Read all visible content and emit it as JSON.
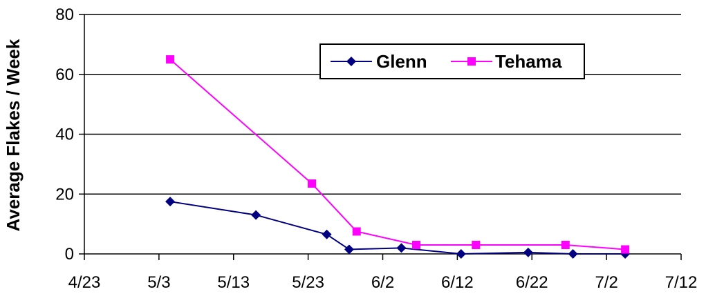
{
  "chart_data": {
    "type": "line",
    "title": "",
    "xlabel": "",
    "ylabel": "Average Flakes / Week",
    "x_ticks": [
      "4/23",
      "5/3",
      "5/13",
      "5/23",
      "6/2",
      "6/12",
      "6/22",
      "7/2",
      "7/12"
    ],
    "x_tick_values": [
      0,
      10,
      20,
      30,
      40,
      50,
      60,
      70,
      80
    ],
    "x_origin_date": "4/23",
    "xlim": [
      0,
      80
    ],
    "y_ticks": [
      "0",
      "20",
      "40",
      "60",
      "80"
    ],
    "y_tick_values": [
      0,
      20,
      40,
      60,
      80
    ],
    "ylim": [
      0,
      80
    ],
    "grid": "horizontal",
    "legend_position": "top-right",
    "series": [
      {
        "name": "Glenn",
        "color": "#000080",
        "marker": "diamond",
        "points": [
          {
            "date": "5/4",
            "x": 11.5,
            "y": 17.5
          },
          {
            "date": "5/16",
            "x": 23,
            "y": 13
          },
          {
            "date": "5/26",
            "x": 32.5,
            "y": 6.5
          },
          {
            "date": "5/28",
            "x": 35.5,
            "y": 1.5
          },
          {
            "date": "6/4",
            "x": 42.5,
            "y": 2
          },
          {
            "date": "6/13",
            "x": 50.5,
            "y": 0
          },
          {
            "date": "6/22",
            "x": 59.5,
            "y": 0.5
          },
          {
            "date": "6/28",
            "x": 65.5,
            "y": 0
          },
          {
            "date": "7/5",
            "x": 72.5,
            "y": 0
          }
        ]
      },
      {
        "name": "Tehama",
        "color": "#FF00FF",
        "marker": "square",
        "points": [
          {
            "date": "5/4",
            "x": 11.5,
            "y": 65
          },
          {
            "date": "5/24",
            "x": 30.5,
            "y": 23.5
          },
          {
            "date": "5/29",
            "x": 36.5,
            "y": 7.5
          },
          {
            "date": "6/6",
            "x": 44.5,
            "y": 3
          },
          {
            "date": "6/14",
            "x": 52.5,
            "y": 3
          },
          {
            "date": "6/27",
            "x": 64.5,
            "y": 3
          },
          {
            "date": "7/5",
            "x": 72.5,
            "y": 1.5
          }
        ]
      }
    ]
  }
}
